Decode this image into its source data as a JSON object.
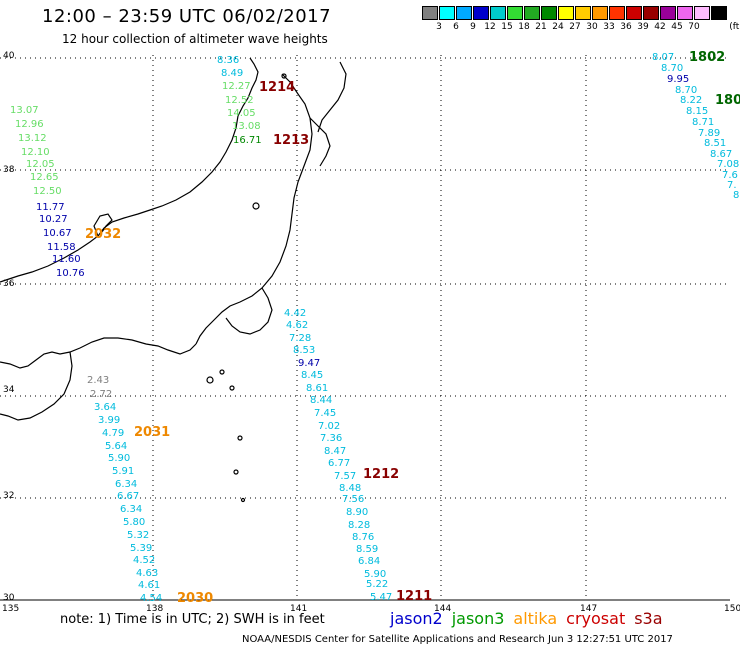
{
  "header": {
    "title": "12:00 – 23:59 UTC 06/02/2017",
    "subtitle": "12 hour collection of altimeter wave heights"
  },
  "legend": {
    "unit": "(ft)",
    "colors": [
      "#808080",
      "#00ffff",
      "#00aaff",
      "#0000cc",
      "#00cccc",
      "#33dd33",
      "#22aa22",
      "#008800",
      "#ffff00",
      "#ffcc00",
      "#ff9900",
      "#ff3300",
      "#cc0000",
      "#990000",
      "#990099",
      "#ee66ee",
      "#ffbbff",
      "#000000"
    ],
    "labels": [
      "3",
      "6",
      "9",
      "12",
      "15",
      "18",
      "21",
      "24",
      "27",
      "30",
      "33",
      "36",
      "39",
      "42",
      "45",
      "70"
    ]
  },
  "axes": {
    "lat_labels": [
      "40",
      "38",
      "36",
      "34",
      "32",
      "30"
    ],
    "lon_labels": [
      "135",
      "138",
      "141",
      "144",
      "147",
      "150"
    ]
  },
  "passes": [
    {
      "label": "1802",
      "color": "#006600"
    },
    {
      "label": "180",
      "color": "#006600"
    },
    {
      "label": "1214",
      "color": "#880000"
    },
    {
      "label": "1213",
      "color": "#880000"
    },
    {
      "label": "2032",
      "color": "#ee8800"
    },
    {
      "label": "2031",
      "color": "#ee8800"
    },
    {
      "label": "1212",
      "color": "#880000"
    },
    {
      "label": "2030",
      "color": "#ee8800"
    },
    {
      "label": "1211",
      "color": "#880000"
    }
  ],
  "tracks": [
    {
      "name": "left-track",
      "values": [
        "13.07",
        "12.96",
        "13.12",
        "12.10",
        "12.05",
        "12.65",
        "12.50",
        "11.77",
        "10.27",
        "10.67",
        "11.58",
        "11.60",
        "10.76"
      ],
      "colors": [
        "#66dd66",
        "#66dd66",
        "#66dd66",
        "#66dd66",
        "#66dd66",
        "#66dd66",
        "#66dd66",
        "#0000aa",
        "#0000aa",
        "#0000aa",
        "#0000aa",
        "#0000aa",
        "#0000aa"
      ]
    },
    {
      "name": "north-track",
      "values": [
        "8.36",
        "8.49",
        "12.27",
        "12.52",
        "14.05",
        "13.08",
        "16.71"
      ],
      "colors": [
        "#00bbdd",
        "#00bbdd",
        "#66dd66",
        "#66dd66",
        "#66dd66",
        "#66dd66",
        "#008800"
      ]
    },
    {
      "name": "east-track",
      "values": [
        "8.07",
        "8.70",
        "9.95",
        "8.70",
        "8.22",
        "8.15",
        "8.71",
        "7.89",
        "8.51",
        "8.67",
        "7.08",
        "7.6",
        "7.",
        "8"
      ],
      "colors": [
        "#00bbdd",
        "#00bbdd",
        "#0000aa",
        "#00bbdd",
        "#00bbdd",
        "#00bbdd",
        "#00bbdd",
        "#00bbdd",
        "#00bbdd",
        "#00bbdd",
        "#00bbdd",
        "#00bbdd",
        "#00bbdd",
        "#00bbdd"
      ]
    },
    {
      "name": "middle-track",
      "values": [
        "4.42",
        "4.62",
        "7.28",
        "8.53",
        "9.47",
        "8.45",
        "8.61",
        "8.44",
        "7.45",
        "7.02",
        "7.36",
        "8.47",
        "6.77",
        "7.57",
        "8.48",
        "7.56",
        "8.90",
        "8.28",
        "8.76",
        "8.59",
        "6.84",
        "5.90",
        "5.22",
        "5.47"
      ],
      "colors": [
        "#00bbdd",
        "#00bbdd",
        "#00bbdd",
        "#00bbdd",
        "#0000aa",
        "#00bbdd",
        "#00bbdd",
        "#00bbdd",
        "#00bbdd",
        "#00bbdd",
        "#00bbdd",
        "#00bbdd",
        "#00bbdd",
        "#00bbdd",
        "#00bbdd",
        "#00bbdd",
        "#00bbdd",
        "#00bbdd",
        "#00bbdd",
        "#00bbdd",
        "#00bbdd",
        "#00bbdd",
        "#00bbdd",
        "#00bbdd"
      ]
    },
    {
      "name": "south-track",
      "values": [
        "2.43",
        "2.72",
        "3.64",
        "3.99",
        "4.79",
        "5.64",
        "5.90",
        "5.91",
        "6.34",
        "6.67",
        "6.34",
        "5.80",
        "5.32",
        "5.39",
        "4.52",
        "4.63",
        "4.61",
        "4.54"
      ],
      "colors": [
        "#808080",
        "#808080",
        "#00bbdd",
        "#00bbdd",
        "#00bbdd",
        "#00bbdd",
        "#00bbdd",
        "#00bbdd",
        "#00bbdd",
        "#00bbdd",
        "#00bbdd",
        "#00bbdd",
        "#00bbdd",
        "#00bbdd",
        "#00bbdd",
        "#00bbdd",
        "#00bbdd",
        "#00bbdd"
      ]
    }
  ],
  "footer": {
    "note": "note: 1) Time is in UTC; 2) SWH is in feet",
    "credit": "NOAA/NESDIS Center for Satellite Applications and Research    Jun  3 12:27:51 UTC 2017",
    "satellites": [
      {
        "name": "jason2",
        "color": "#0000cc"
      },
      {
        "name": "jason3",
        "color": "#009900"
      },
      {
        "name": "altika",
        "color": "#ff9900"
      },
      {
        "name": "cryosat",
        "color": "#cc0000"
      },
      {
        "name": "s3a",
        "color": "#990000"
      }
    ]
  }
}
